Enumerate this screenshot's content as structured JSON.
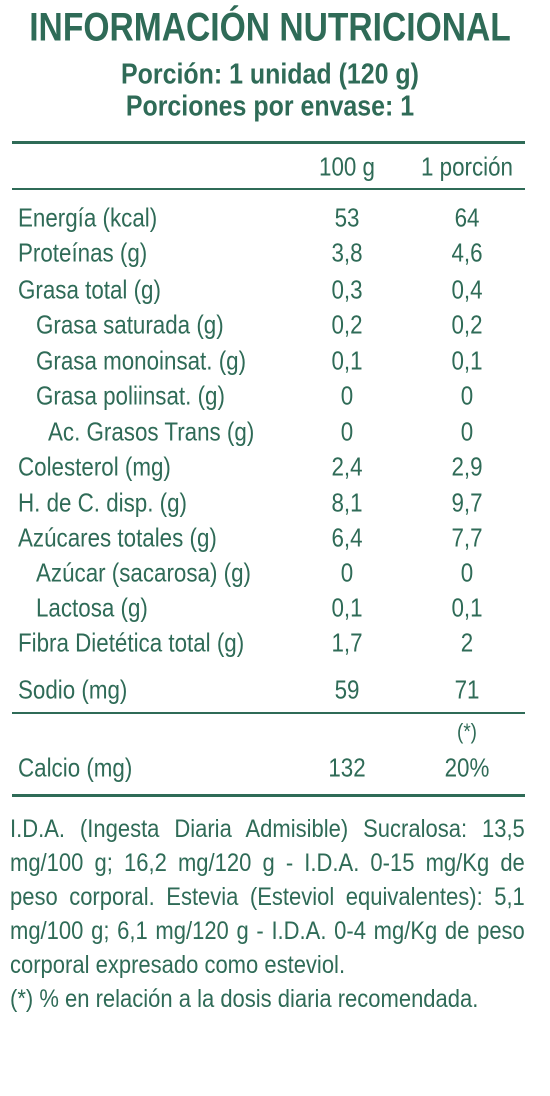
{
  "header": {
    "title": "INFORMACIÓN NUTRICIONAL",
    "serving": "Porción: 1 unidad (120 g)",
    "servings_per_container": "Porciones por envase: 1"
  },
  "table": {
    "columns": [
      "100 g",
      "1 porción"
    ],
    "rows": [
      {
        "label": "Energía (kcal)",
        "values": [
          "53",
          "64"
        ]
      },
      {
        "label": "Proteínas (g)",
        "values": [
          "3,8",
          "4,6"
        ]
      },
      {
        "label": "Grasa total (g)",
        "values": [
          "0,3",
          "0,4"
        ]
      },
      {
        "label": "Grasa saturada (g)",
        "values": [
          "0,2",
          "0,2"
        ]
      },
      {
        "label": "Grasa monoinsat. (g)",
        "values": [
          "0,1",
          "0,1"
        ]
      },
      {
        "label": "Grasa poliinsat. (g)",
        "values": [
          "0",
          "0"
        ]
      },
      {
        "label": "Ac. Grasos Trans (g)",
        "values": [
          "0",
          "0"
        ]
      },
      {
        "label": "Colesterol (mg)",
        "values": [
          "2,4",
          "2,9"
        ]
      },
      {
        "label": "H. de C. disp. (g)",
        "values": [
          "8,1",
          "9,7"
        ]
      },
      {
        "label": "Azúcares totales (g)",
        "values": [
          "6,4",
          "7,7"
        ]
      },
      {
        "label": "Azúcar (sacarosa) (g)",
        "values": [
          "0",
          "0"
        ]
      },
      {
        "label": "Lactosa (g)",
        "values": [
          "0,1",
          "0,1"
        ]
      },
      {
        "label": "Fibra Dietética total (g)",
        "values": [
          "1,7",
          "2"
        ]
      },
      {
        "label": "Sodio (mg)",
        "values": [
          "59",
          "71"
        ]
      }
    ],
    "extra": {
      "note_mark": "(*)",
      "label": "Calcio (mg)",
      "values": [
        "132",
        "20%"
      ]
    }
  },
  "footnotes": [
    "I.D.A. (Ingesta Diaria Admisible) Sucralosa: 13,5 mg/100 g; 16,2 mg/120 g - I.D.A. 0-15 mg/Kg de peso corporal. Estevia (Esteviol equivalentes): 5,1 mg/100 g; 6,1 mg/120 g - I.D.A. 0-4 mg/Kg de peso corporal expresado como esteviol.",
    "(*) % en relación a la dosis diaria recomendada."
  ]
}
